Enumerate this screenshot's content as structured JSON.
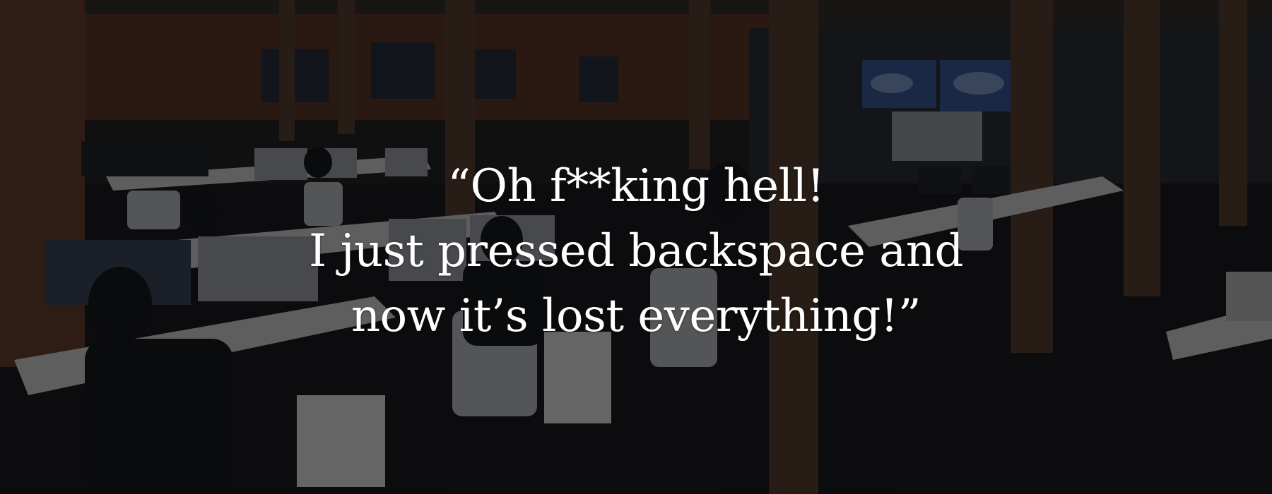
{
  "hero": {
    "quote_lines": [
      "“Oh f**king hell!",
      "I just pressed backspace and",
      "now it’s lost everything!”"
    ]
  },
  "colors": {
    "overlay": "#0a0a0c",
    "brick": "#5a3320",
    "floor": "#141416",
    "desk": "#cfcfcf",
    "pillar": "#4a3424",
    "wall_map_screen": "#2b4d86",
    "text": "#ffffff"
  },
  "icons": [
    "world-map-screen",
    "office-chair",
    "computer-monitor"
  ]
}
